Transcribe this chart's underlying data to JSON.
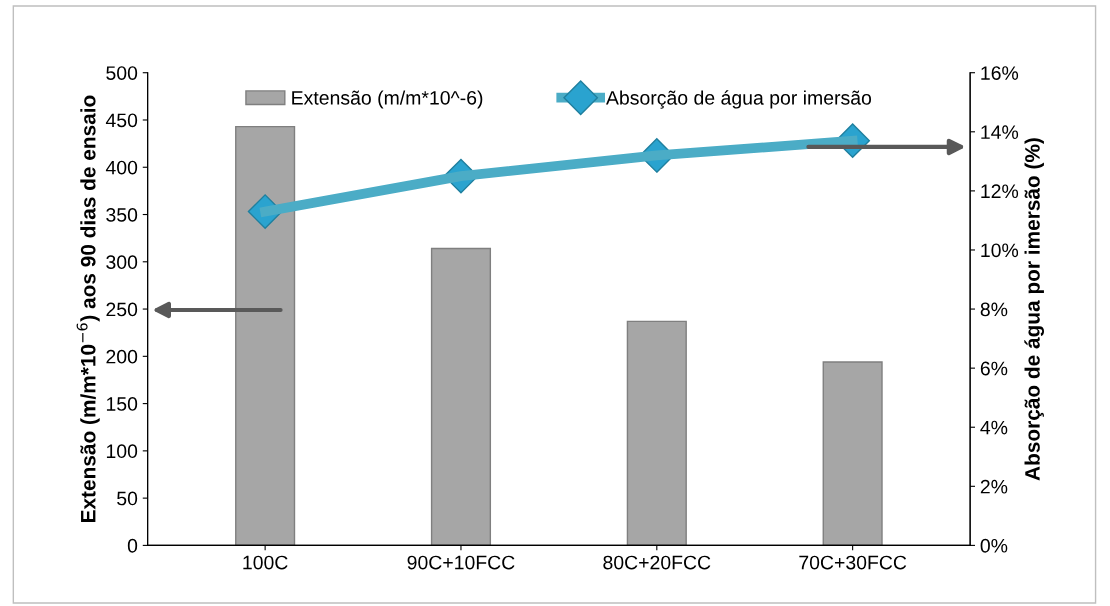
{
  "chart_data": {
    "type": "bar",
    "categories": [
      "100C",
      "90C+10FCC",
      "80C+20FCC",
      "70C+30FCC"
    ],
    "ylabel": "Extensão (m/m*10$^{−6}$) aos 90 dias de ensaio",
    "y2label": "Absorção de água por imersão (%)",
    "ylim": [
      0,
      500
    ],
    "yticks": [
      0,
      50,
      100,
      150,
      200,
      250,
      300,
      350,
      400,
      450,
      500
    ],
    "y2lim": [
      0,
      16
    ],
    "y2ticks": [
      {
        "value": 0,
        "label": "0%"
      },
      {
        "value": 2,
        "label": "2%"
      },
      {
        "value": 4,
        "label": "4%"
      },
      {
        "value": 6,
        "label": "6%"
      },
      {
        "value": 8,
        "label": "8%"
      },
      {
        "value": 10,
        "label": "10%"
      },
      {
        "value": 12,
        "label": "12%"
      },
      {
        "value": 14,
        "label": "14%"
      },
      {
        "value": 16,
        "label": "16%"
      }
    ],
    "series": [
      {
        "name": "Extensão (m/m*10^-6)",
        "color": "#a6a6a6",
        "values": [
          443,
          314,
          237,
          194
        ]
      },
      {
        "name": "Absorção de água por imersão",
        "type": "line",
        "axis": "y2",
        "color": "#4bacc6",
        "marker": "diamond",
        "values": [
          11.3,
          12.5,
          13.2,
          13.7
        ]
      }
    ],
    "legend": "top",
    "grid": false
  }
}
